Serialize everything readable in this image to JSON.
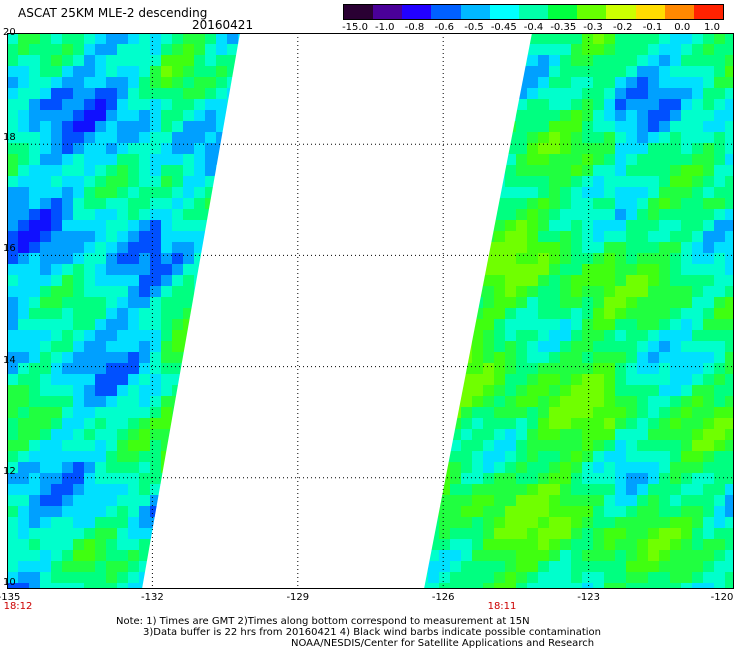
{
  "header": {
    "title": "ASCAT 25KM MLE-2 descending",
    "date": "20160421"
  },
  "colorbar": {
    "labels": [
      "-15.0",
      "-1.0",
      "-0.8",
      "-0.6",
      "-0.5",
      "-0.45",
      "-0.4",
      "-0.35",
      "-0.3",
      "-0.2",
      "-0.1",
      "0.0",
      "1.0"
    ],
    "colors": [
      "#2a0033",
      "#4a0099",
      "#2200ff",
      "#0060ff",
      "#00b8ff",
      "#00ffff",
      "#00ffaa",
      "#00ff40",
      "#66ff00",
      "#ccff00",
      "#ffdd00",
      "#ff8800",
      "#ff2200"
    ]
  },
  "axes": {
    "x_labels": [
      "-135",
      "-132",
      "-129",
      "-126",
      "-123",
      "-120"
    ],
    "y_labels": [
      "20",
      "18",
      "16",
      "14",
      "12",
      "10"
    ],
    "lon_range": [
      -135,
      -120
    ],
    "lat_range": [
      10,
      20
    ]
  },
  "swath_times": [
    "18:12",
    "18:11"
  ],
  "notes": [
    "Note: 1) Times are GMT 2)Times along bottom correspond to measurement at 15N",
    "3)Data buffer is 22 hrs from 20160421 4) Black wind barbs indicate possible contamination",
    "NOAA/NESDIS/Center for Satellite Applications and Research"
  ]
}
